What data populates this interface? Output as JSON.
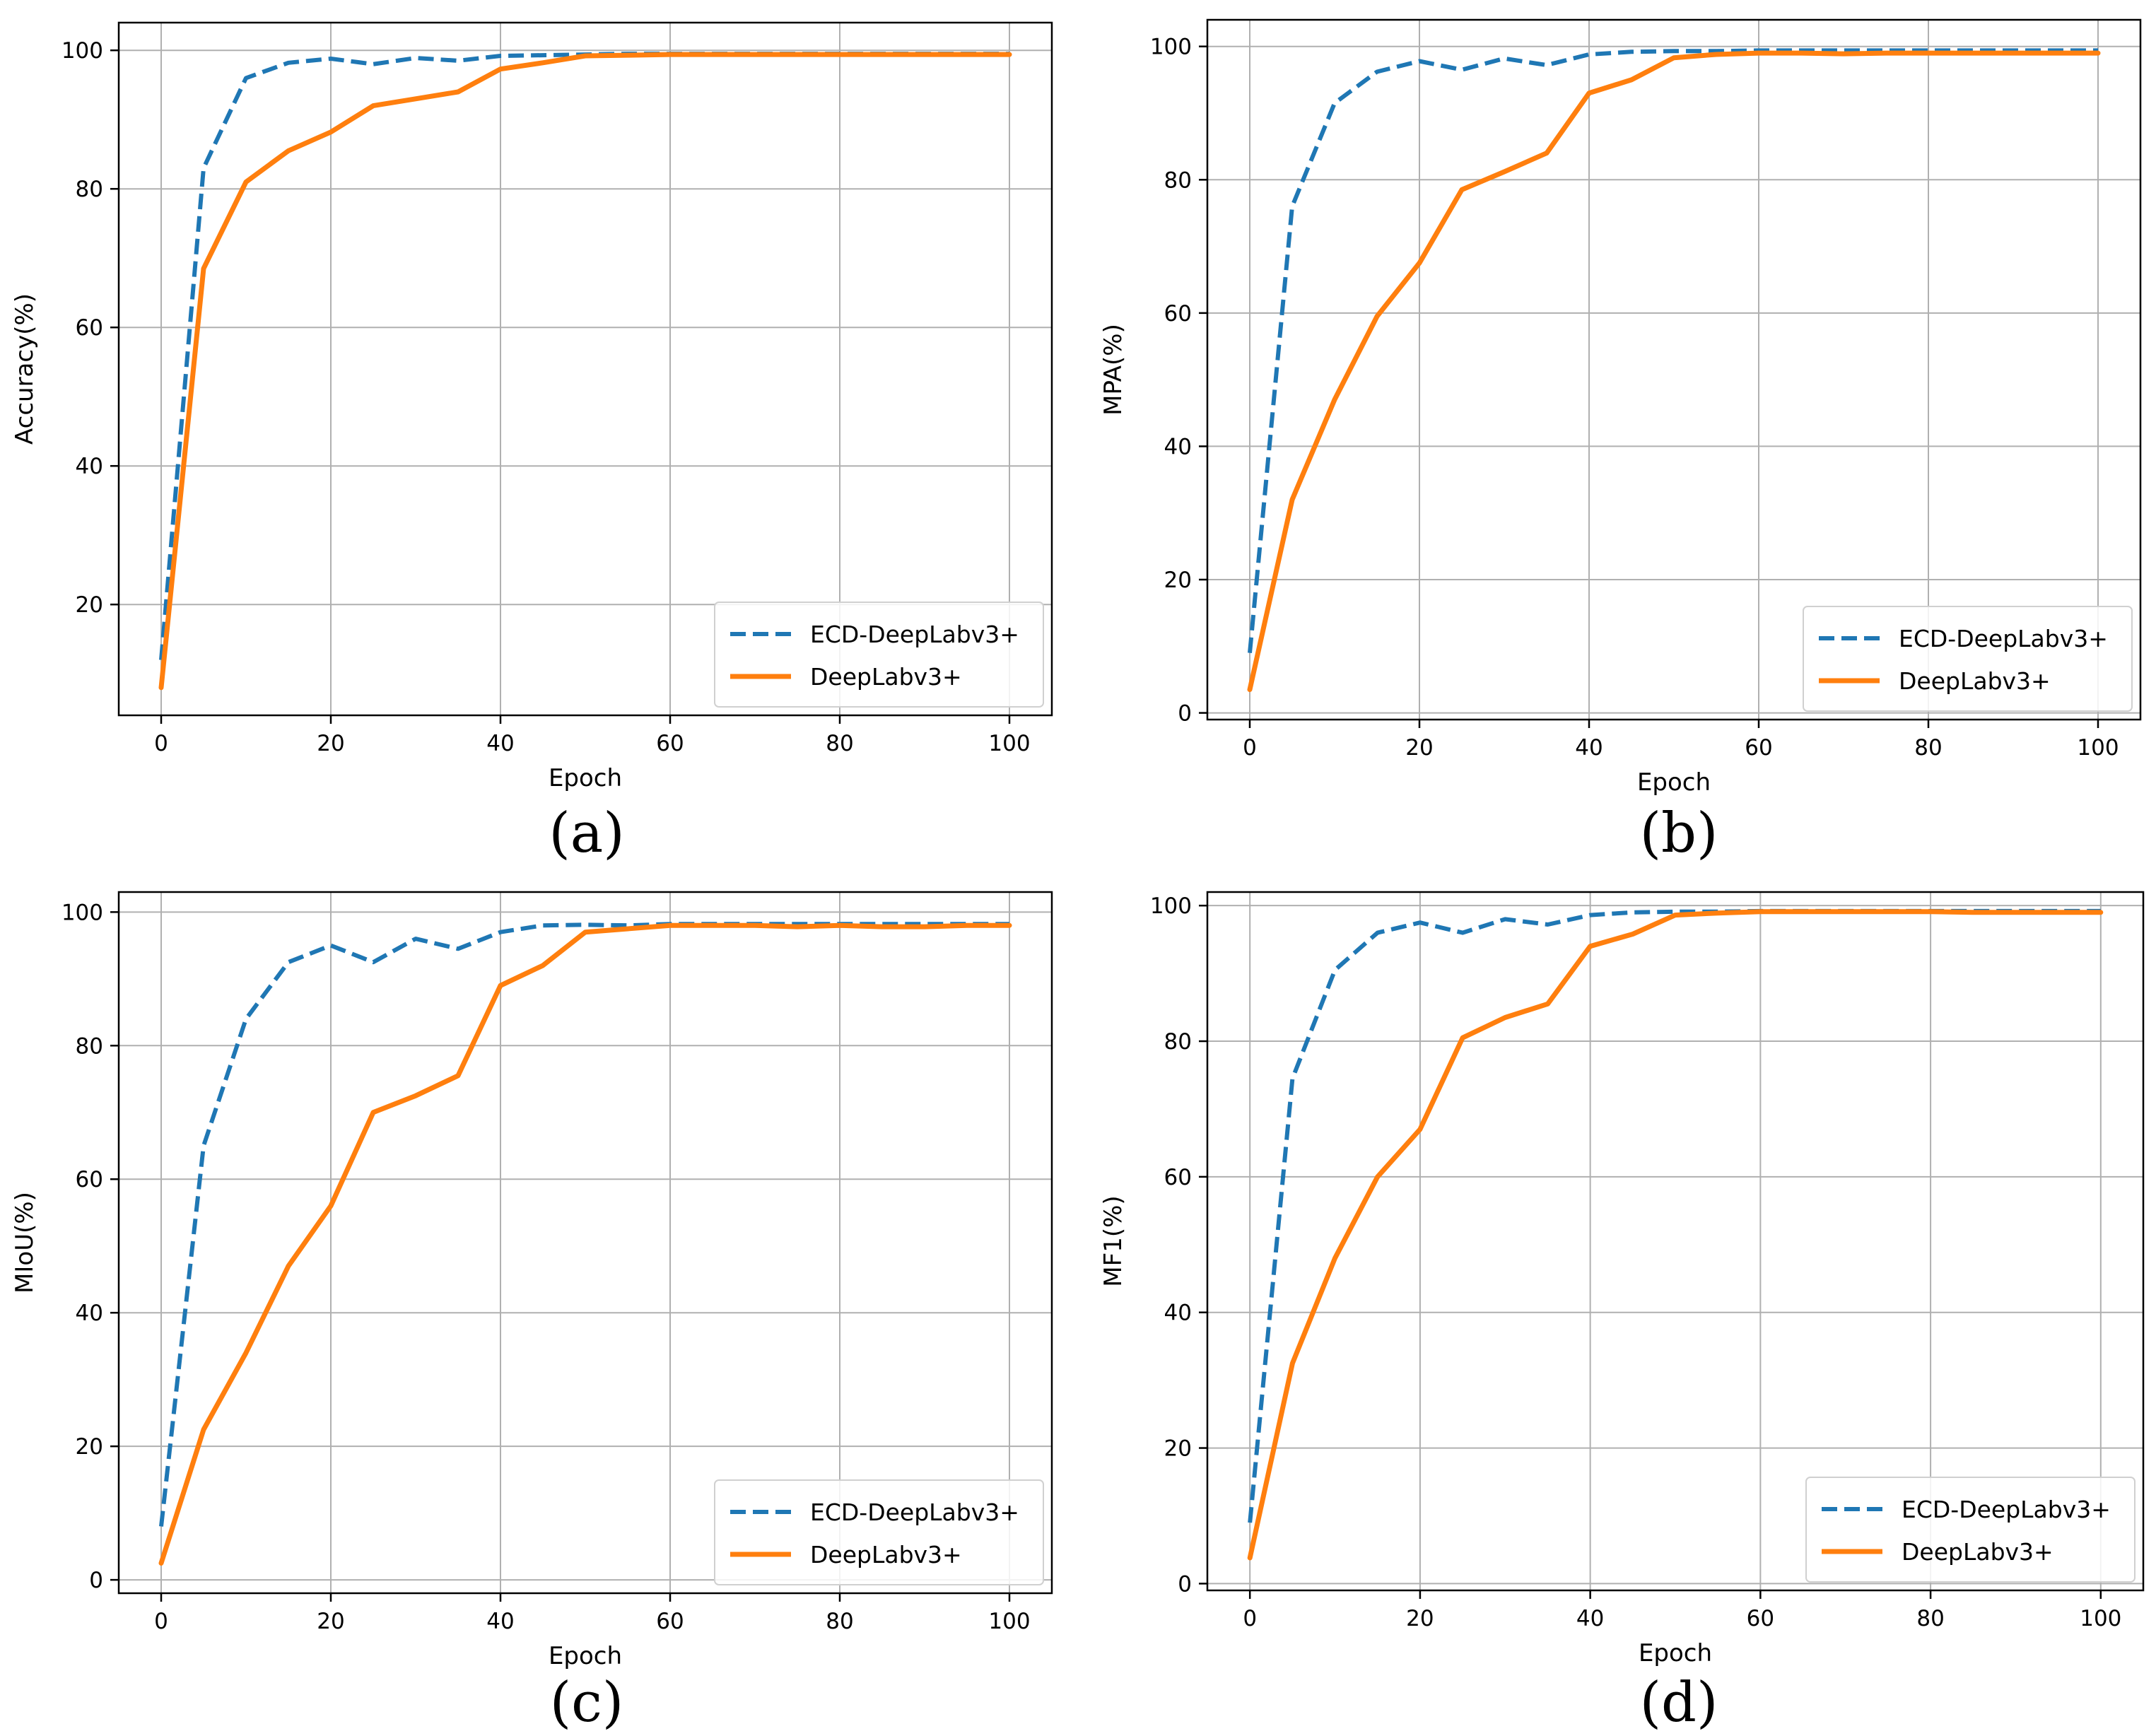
{
  "figure": {
    "colors": {
      "ecd": "#1f77b4",
      "deeplab": "#ff7f0e",
      "grid": "#b0b0b0",
      "axis": "#000000"
    }
  },
  "chart_data": [
    {
      "type": "line",
      "panel": "a",
      "caption": "(a)",
      "xlabel": "Epoch",
      "ylabel": "Accuracy(%)",
      "xlim": [
        0,
        100
      ],
      "ylim": [
        4,
        104
      ],
      "xticks": [
        0,
        20,
        40,
        60,
        80,
        100
      ],
      "yticks": [
        20,
        40,
        60,
        80,
        100
      ],
      "grid": true,
      "legend_position": "bottom-right",
      "x": [
        0,
        5,
        10,
        15,
        20,
        25,
        30,
        35,
        40,
        45,
        50,
        55,
        60,
        65,
        70,
        75,
        80,
        85,
        90,
        95,
        100
      ],
      "series": [
        {
          "name": "ECD-DeepLabv3+",
          "style": "dashed",
          "color": "#1f77b4",
          "values": [
            12,
            83,
            96,
            98.2,
            98.8,
            98,
            98.9,
            98.5,
            99.2,
            99.3,
            99.4,
            99.5,
            99.5,
            99.5,
            99.5,
            99.5,
            99.5,
            99.5,
            99.5,
            99.5,
            99.5
          ]
        },
        {
          "name": "DeepLabv3+",
          "style": "solid",
          "color": "#ff7f0e",
          "values": [
            8,
            68.5,
            81,
            85.5,
            88.2,
            92,
            93,
            94,
            97.3,
            98.2,
            99.2,
            99.3,
            99.4,
            99.4,
            99.4,
            99.4,
            99.4,
            99.4,
            99.4,
            99.4,
            99.4
          ]
        }
      ]
    },
    {
      "type": "line",
      "panel": "b",
      "caption": "(b)",
      "xlabel": "Epoch",
      "ylabel": "MPA(%)",
      "xlim": [
        0,
        100
      ],
      "ylim": [
        -1,
        104
      ],
      "xticks": [
        0,
        20,
        40,
        60,
        80,
        100
      ],
      "yticks": [
        0,
        20,
        40,
        60,
        80,
        100
      ],
      "grid": true,
      "legend_position": "bottom-right",
      "x": [
        0,
        5,
        10,
        15,
        20,
        25,
        30,
        35,
        40,
        45,
        50,
        55,
        60,
        65,
        70,
        75,
        80,
        85,
        90,
        95,
        100
      ],
      "series": [
        {
          "name": "ECD-DeepLabv3+",
          "style": "dashed",
          "color": "#1f77b4",
          "values": [
            9,
            76,
            91.5,
            96.2,
            97.8,
            96.5,
            98.2,
            97.2,
            98.8,
            99.2,
            99.3,
            99.3,
            99.4,
            99.4,
            99.4,
            99.4,
            99.4,
            99.4,
            99.4,
            99.4,
            99.4
          ]
        },
        {
          "name": "DeepLabv3+",
          "style": "solid",
          "color": "#ff7f0e",
          "values": [
            3.5,
            32,
            47,
            59.5,
            67.5,
            78.5,
            81.2,
            84,
            93,
            95,
            98.3,
            98.8,
            99,
            99,
            98.9,
            99,
            99,
            99,
            99,
            99,
            99
          ]
        }
      ]
    },
    {
      "type": "line",
      "panel": "c",
      "caption": "(c)",
      "xlabel": "Epoch",
      "ylabel": "MIoU(%)",
      "xlim": [
        0,
        100
      ],
      "ylim": [
        -2,
        103
      ],
      "xticks": [
        0,
        20,
        40,
        60,
        80,
        100
      ],
      "yticks": [
        0,
        20,
        40,
        60,
        80,
        100
      ],
      "grid": true,
      "legend_position": "bottom-right",
      "x": [
        0,
        5,
        10,
        15,
        20,
        25,
        30,
        35,
        40,
        45,
        50,
        55,
        60,
        65,
        70,
        75,
        80,
        85,
        90,
        95,
        100
      ],
      "series": [
        {
          "name": "ECD-DeepLabv3+",
          "style": "dashed",
          "color": "#1f77b4",
          "values": [
            8,
            65,
            84,
            92.5,
            95,
            92.5,
            96,
            94.5,
            97,
            98,
            98.1,
            98,
            98.2,
            98.2,
            98.2,
            98.2,
            98.2,
            98.2,
            98.2,
            98.2,
            98.2
          ]
        },
        {
          "name": "DeepLabv3+",
          "style": "solid",
          "color": "#ff7f0e",
          "values": [
            2.5,
            22.5,
            34,
            47,
            56,
            70,
            72.5,
            75.5,
            89,
            92,
            97,
            97.5,
            98,
            98,
            98,
            97.8,
            98,
            97.8,
            97.8,
            98,
            98
          ]
        }
      ]
    },
    {
      "type": "line",
      "panel": "d",
      "caption": "(d)",
      "xlabel": "Epoch",
      "ylabel": "MF1(%)",
      "xlim": [
        0,
        100
      ],
      "ylim": [
        -1,
        102
      ],
      "xticks": [
        0,
        20,
        40,
        60,
        80,
        100
      ],
      "yticks": [
        0,
        20,
        40,
        60,
        80,
        100
      ],
      "grid": true,
      "legend_position": "bottom-right",
      "x": [
        0,
        5,
        10,
        15,
        20,
        25,
        30,
        35,
        40,
        45,
        50,
        55,
        60,
        65,
        70,
        75,
        80,
        85,
        90,
        95,
        100
      ],
      "series": [
        {
          "name": "ECD-DeepLabv3+",
          "style": "dashed",
          "color": "#1f77b4",
          "values": [
            9,
            74.5,
            90.5,
            96,
            97.5,
            96,
            98,
            97.2,
            98.6,
            99,
            99.1,
            99.1,
            99.2,
            99.2,
            99.2,
            99.2,
            99.2,
            99.2,
            99.2,
            99.2,
            99.2
          ]
        },
        {
          "name": "DeepLabv3+",
          "style": "solid",
          "color": "#ff7f0e",
          "values": [
            3.8,
            32.5,
            48,
            60,
            67,
            80.5,
            83.5,
            85.5,
            94,
            95.8,
            98.6,
            98.9,
            99.1,
            99.1,
            99.1,
            99.1,
            99.1,
            99,
            99,
            99,
            99
          ]
        }
      ]
    }
  ]
}
